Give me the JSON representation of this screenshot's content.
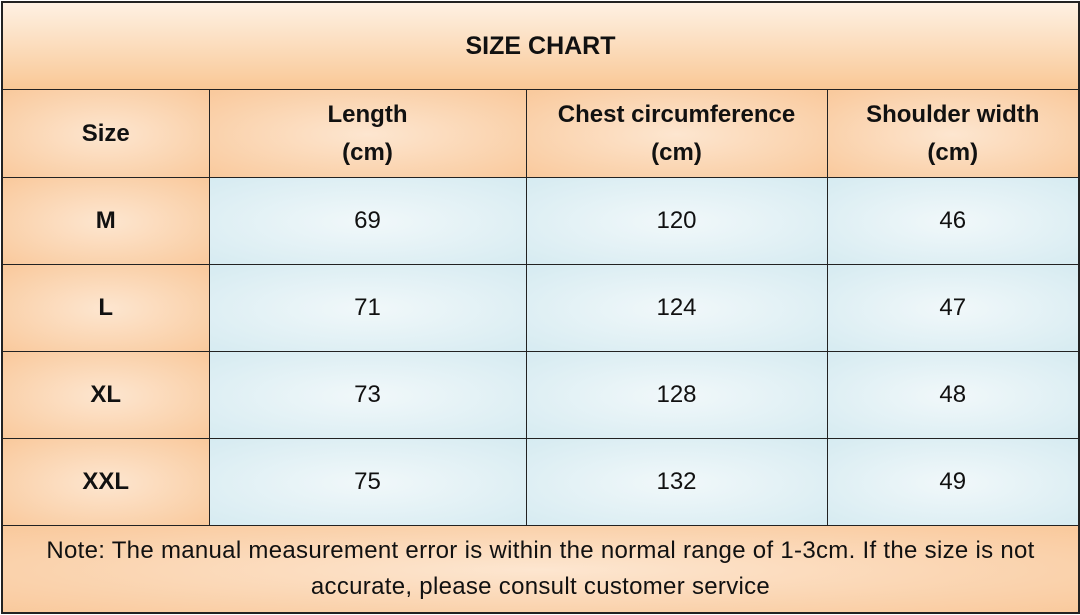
{
  "title": "SIZE CHART",
  "header": [
    [
      "Size"
    ],
    [
      "Length",
      "(cm)"
    ],
    [
      "Chest circumference",
      "(cm)"
    ],
    [
      "Shoulder width",
      "(cm)"
    ]
  ],
  "rows": [
    [
      "M",
      69,
      120,
      46
    ],
    [
      "L",
      71,
      124,
      47
    ],
    [
      "XL",
      73,
      128,
      48
    ],
    [
      "XXL",
      75,
      132,
      49
    ]
  ],
  "note": "Note: The manual measurement error is within the normal range of 1-3cm. If the size is not accurate, please consult customer service"
}
